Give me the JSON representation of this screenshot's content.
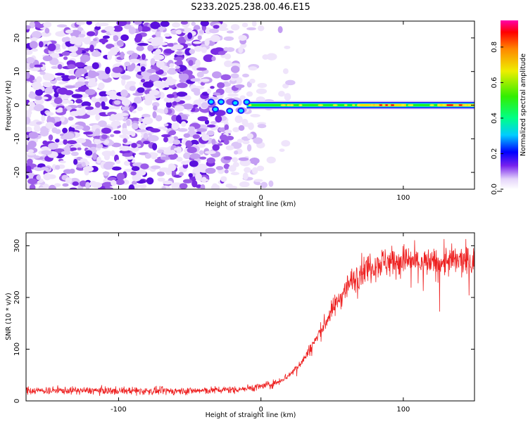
{
  "title": "S233.2025.238.00.46.E15",
  "chart_data": [
    {
      "type": "heatmap",
      "xlabel": "Height of straight line (km)",
      "ylabel": "Frequency (Hz)",
      "xlim": [
        -165,
        150
      ],
      "ylim": [
        -25,
        25
      ],
      "xticks": [
        -100,
        0,
        100
      ],
      "xtick_labels": [
        "-100",
        "0",
        "100"
      ],
      "yticks": [
        -20,
        -10,
        0,
        10,
        20
      ],
      "ytick_labels": [
        "-20",
        "-10",
        "0",
        "10",
        "20"
      ],
      "description_points": {
        "carrier_freq_hz": 0,
        "noise_region_x": [
          -165,
          -40
        ],
        "transition_x": [
          -40,
          -10
        ],
        "carrier_region_x": [
          -10,
          150
        ],
        "peak_regions_x": [
          [
            68,
            102
          ],
          [
            124,
            150
          ]
        ]
      },
      "colorbar": {
        "label": "Normalized spectral amplitude",
        "range": [
          0,
          0.95
        ],
        "ticks": [
          0.0,
          0.2,
          0.4,
          0.6,
          0.8
        ],
        "tick_labels": [
          "0.0",
          "0.2",
          "0.4",
          "0.6",
          "0.8"
        ]
      }
    },
    {
      "type": "line",
      "xlabel": "Height of straight line (km)",
      "ylabel": "SNR (10 * v/v)",
      "xlim": [
        -165,
        150
      ],
      "ylim": [
        0,
        325
      ],
      "xticks": [
        -100,
        0,
        100
      ],
      "xtick_labels": [
        "-100",
        "0",
        "100"
      ],
      "yticks": [
        0,
        100,
        200,
        300
      ],
      "ytick_labels": [
        "0",
        "100",
        "200",
        "300"
      ],
      "series": [
        {
          "name": "SNR",
          "color": "#ee2222",
          "x": [
            -165,
            -140,
            -120,
            -100,
            -80,
            -60,
            -40,
            -20,
            -10,
            0,
            10,
            20,
            30,
            40,
            50,
            60,
            70,
            80,
            90,
            100,
            110,
            120,
            130,
            140,
            150
          ],
          "y": [
            20,
            20,
            20,
            20,
            19,
            19,
            20,
            22,
            24,
            28,
            34,
            50,
            80,
            125,
            175,
            220,
            250,
            265,
            270,
            272,
            268,
            265,
            270,
            270,
            268
          ]
        }
      ]
    }
  ]
}
